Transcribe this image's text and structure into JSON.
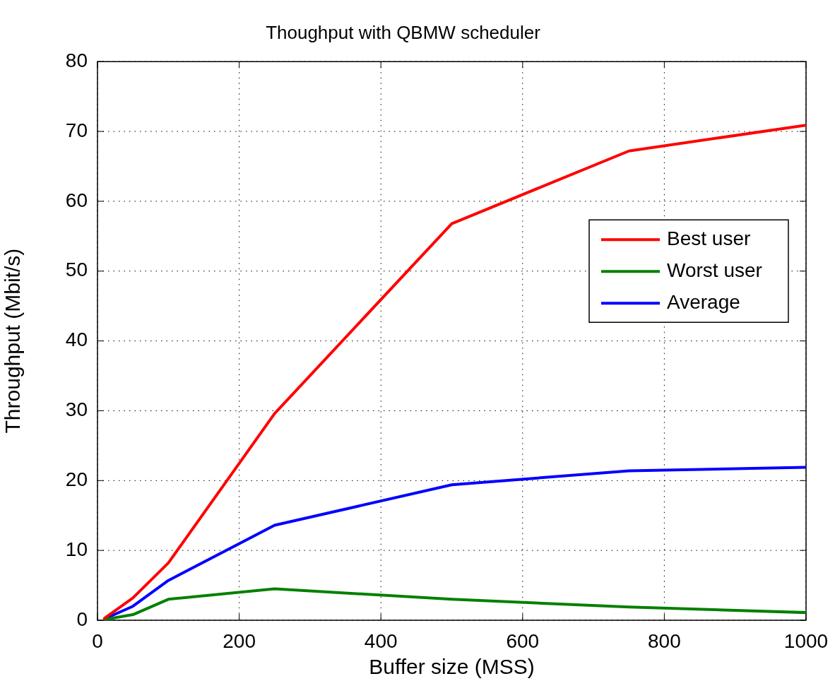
{
  "chart_data": {
    "type": "line",
    "title": "Thoughput with QBMW scheduler",
    "xlabel": "Buffer size (MSS)",
    "ylabel": "Throughput (Mbit/s)",
    "x": [
      10,
      50,
      100,
      250,
      500,
      750,
      1000
    ],
    "series": [
      {
        "name": "Best user",
        "color": "#ff0000",
        "values": [
          0.3,
          3.2,
          8.2,
          29.6,
          56.8,
          67.2,
          70.9
        ]
      },
      {
        "name": "Worst user",
        "color": "#008000",
        "values": [
          0.1,
          0.8,
          3.0,
          4.5,
          3.0,
          1.9,
          1.1
        ]
      },
      {
        "name": "Average",
        "color": "#0000ff",
        "values": [
          0.2,
          2.0,
          5.7,
          13.6,
          19.4,
          21.4,
          21.9
        ]
      }
    ],
    "xlim": [
      0,
      1000
    ],
    "xticks": [
      0,
      200,
      400,
      600,
      800,
      1000
    ],
    "ylim": [
      0,
      80
    ],
    "yticks": [
      0,
      10,
      20,
      30,
      40,
      50,
      60,
      70,
      80
    ],
    "grid": true,
    "legend": "right",
    "marker": "none",
    "line_style": "solid"
  }
}
